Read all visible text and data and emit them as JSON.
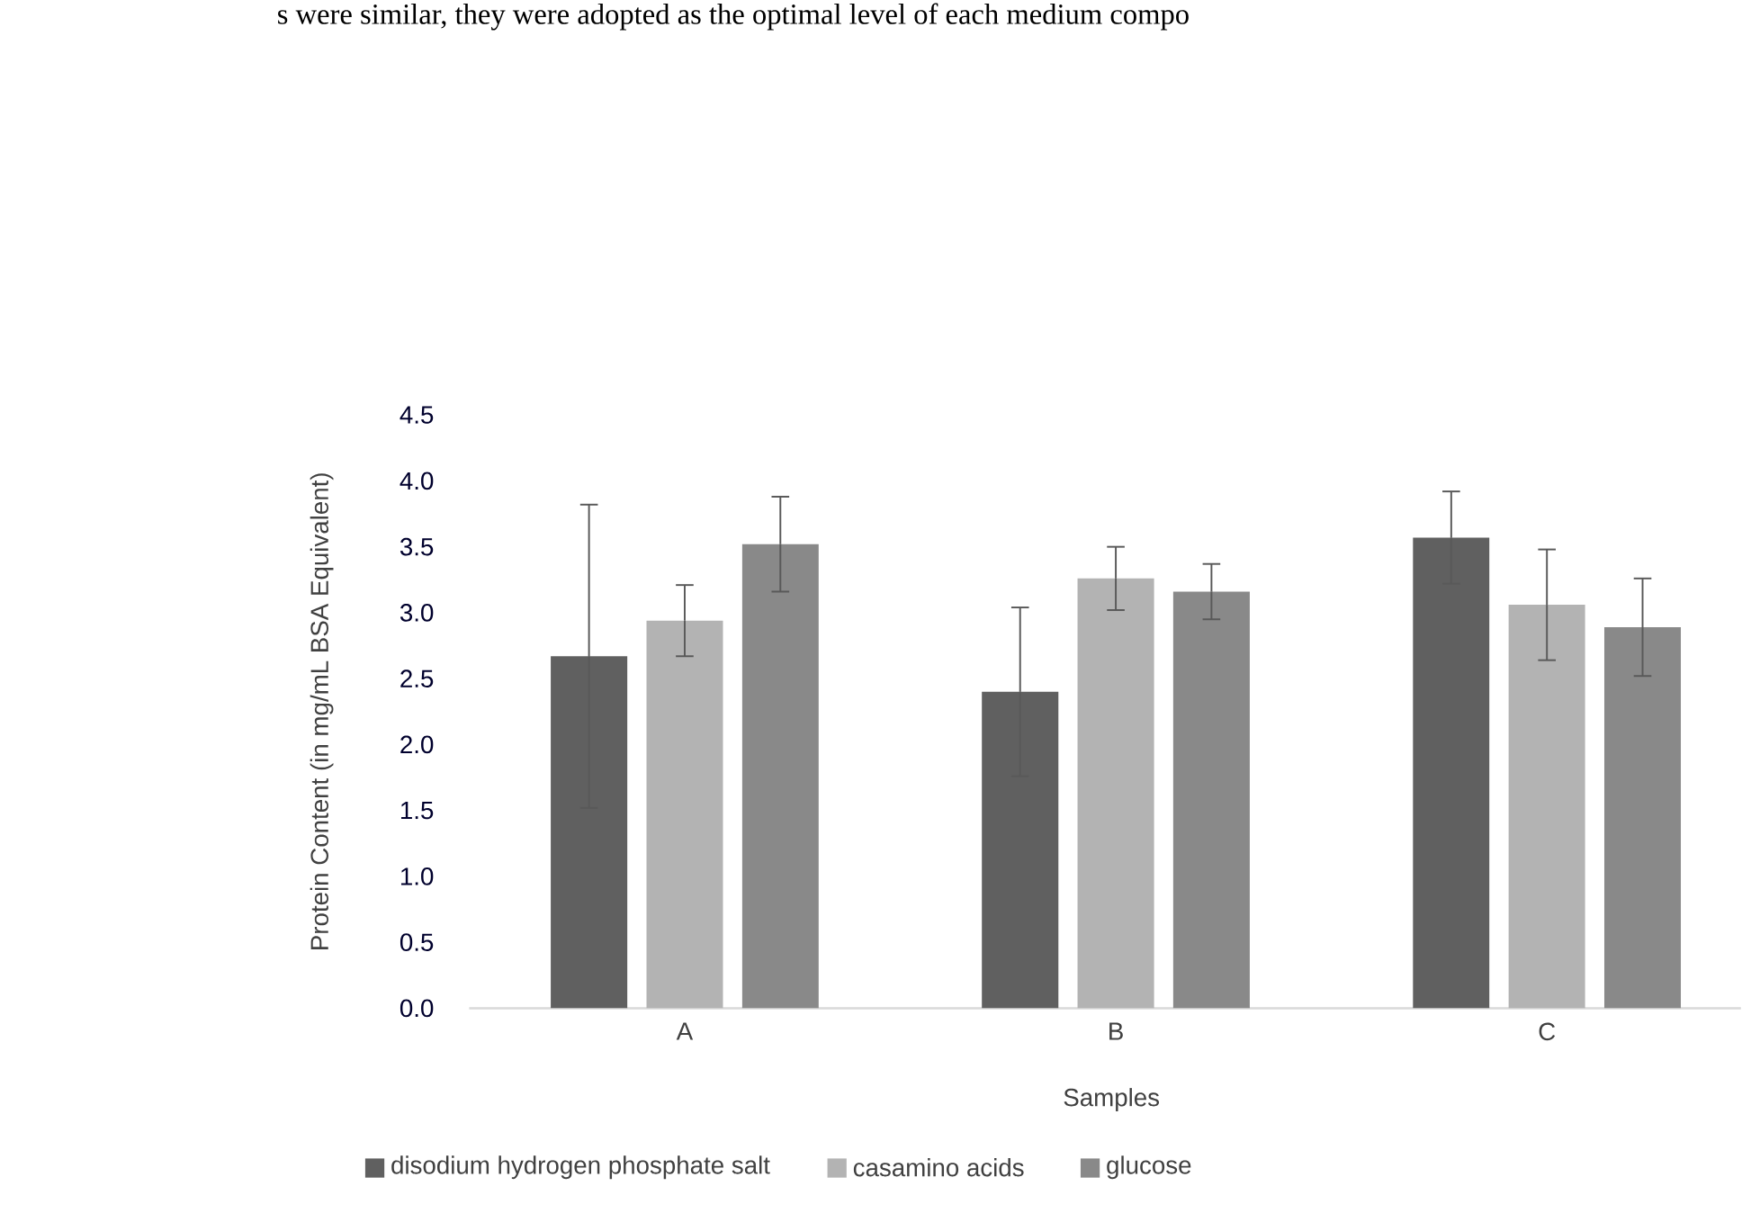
{
  "chart_data": {
    "type": "bar",
    "xlabel": "Samples",
    "ylabel": "Protein Content (in mg/mL BSA Equivalent)",
    "annotations": [
      "s were similar, they were adopted as the optimal level of each medium compo"
    ],
    "categories": [
      "A",
      "B",
      "C"
    ],
    "series": [
      {
        "name": "disodium hydrogen phosphate salt",
        "color": "#606060",
        "values": [
          2.67,
          2.4,
          3.57
        ],
        "errors": [
          1.15,
          0.64,
          0.35
        ]
      },
      {
        "name": "casamino acids",
        "color": "#b3b3b3",
        "values": [
          2.94,
          3.26,
          3.06
        ],
        "errors": [
          0.27,
          0.24,
          0.42
        ]
      },
      {
        "name": "glucose",
        "color": "#898989",
        "values": [
          3.52,
          3.16,
          2.89
        ],
        "errors": [
          0.36,
          0.21,
          0.37
        ]
      }
    ],
    "ylim": [
      0,
      4.5
    ],
    "yticks": [
      {
        "value": 0,
        "label": "0.0"
      },
      {
        "value": 0.5,
        "label": "0.5"
      },
      {
        "value": 1,
        "label": "1.0"
      },
      {
        "value": 1.5,
        "label": "1.5"
      },
      {
        "value": 2,
        "label": "2.0"
      },
      {
        "value": 2.5,
        "label": "2.5"
      },
      {
        "value": 3,
        "label": "3.0"
      },
      {
        "value": 3.5,
        "label": "3.5"
      },
      {
        "value": 4,
        "label": "4.0"
      },
      {
        "value": 4.5,
        "label": "4.5"
      }
    ],
    "legend": "bottom"
  }
}
